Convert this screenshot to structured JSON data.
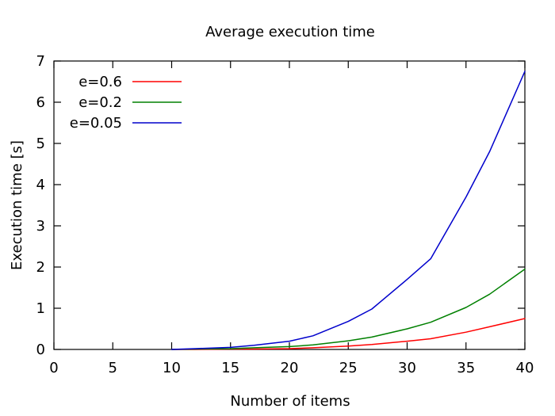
{
  "chart_data": {
    "type": "line",
    "title": "Average execution time",
    "xlabel": "Number of items",
    "ylabel": "Execution time [s]",
    "xlim": [
      0,
      40
    ],
    "ylim": [
      0,
      7
    ],
    "xticks": [
      "0",
      "5",
      "10",
      "15",
      "20",
      "25",
      "30",
      "35",
      "40"
    ],
    "yticks": [
      "0",
      "1",
      "2",
      "3",
      "4",
      "5",
      "6",
      "7"
    ],
    "grid": false,
    "legend_position": "top-left",
    "series": [
      {
        "name": "e=0.6",
        "color": "#ff0000",
        "x": [
          10,
          12,
          15,
          17,
          20,
          22,
          25,
          27,
          30,
          32,
          35,
          37,
          40
        ],
        "y": [
          0.0,
          0.0,
          0.01,
          0.01,
          0.02,
          0.04,
          0.08,
          0.12,
          0.2,
          0.26,
          0.42,
          0.55,
          0.75
        ]
      },
      {
        "name": "e=0.2",
        "color": "#008000",
        "x": [
          10,
          12,
          15,
          17,
          20,
          22,
          25,
          27,
          30,
          32,
          35,
          37,
          40
        ],
        "y": [
          0.0,
          0.01,
          0.02,
          0.04,
          0.07,
          0.11,
          0.21,
          0.3,
          0.5,
          0.66,
          1.02,
          1.34,
          1.95
        ]
      },
      {
        "name": "e=0.05",
        "color": "#0000cc",
        "x": [
          10,
          12,
          15,
          17,
          20,
          22,
          25,
          27,
          30,
          32,
          35,
          37,
          40
        ],
        "y": [
          0.0,
          0.02,
          0.05,
          0.1,
          0.2,
          0.33,
          0.68,
          0.98,
          1.7,
          2.2,
          3.7,
          4.8,
          6.75
        ]
      }
    ]
  }
}
